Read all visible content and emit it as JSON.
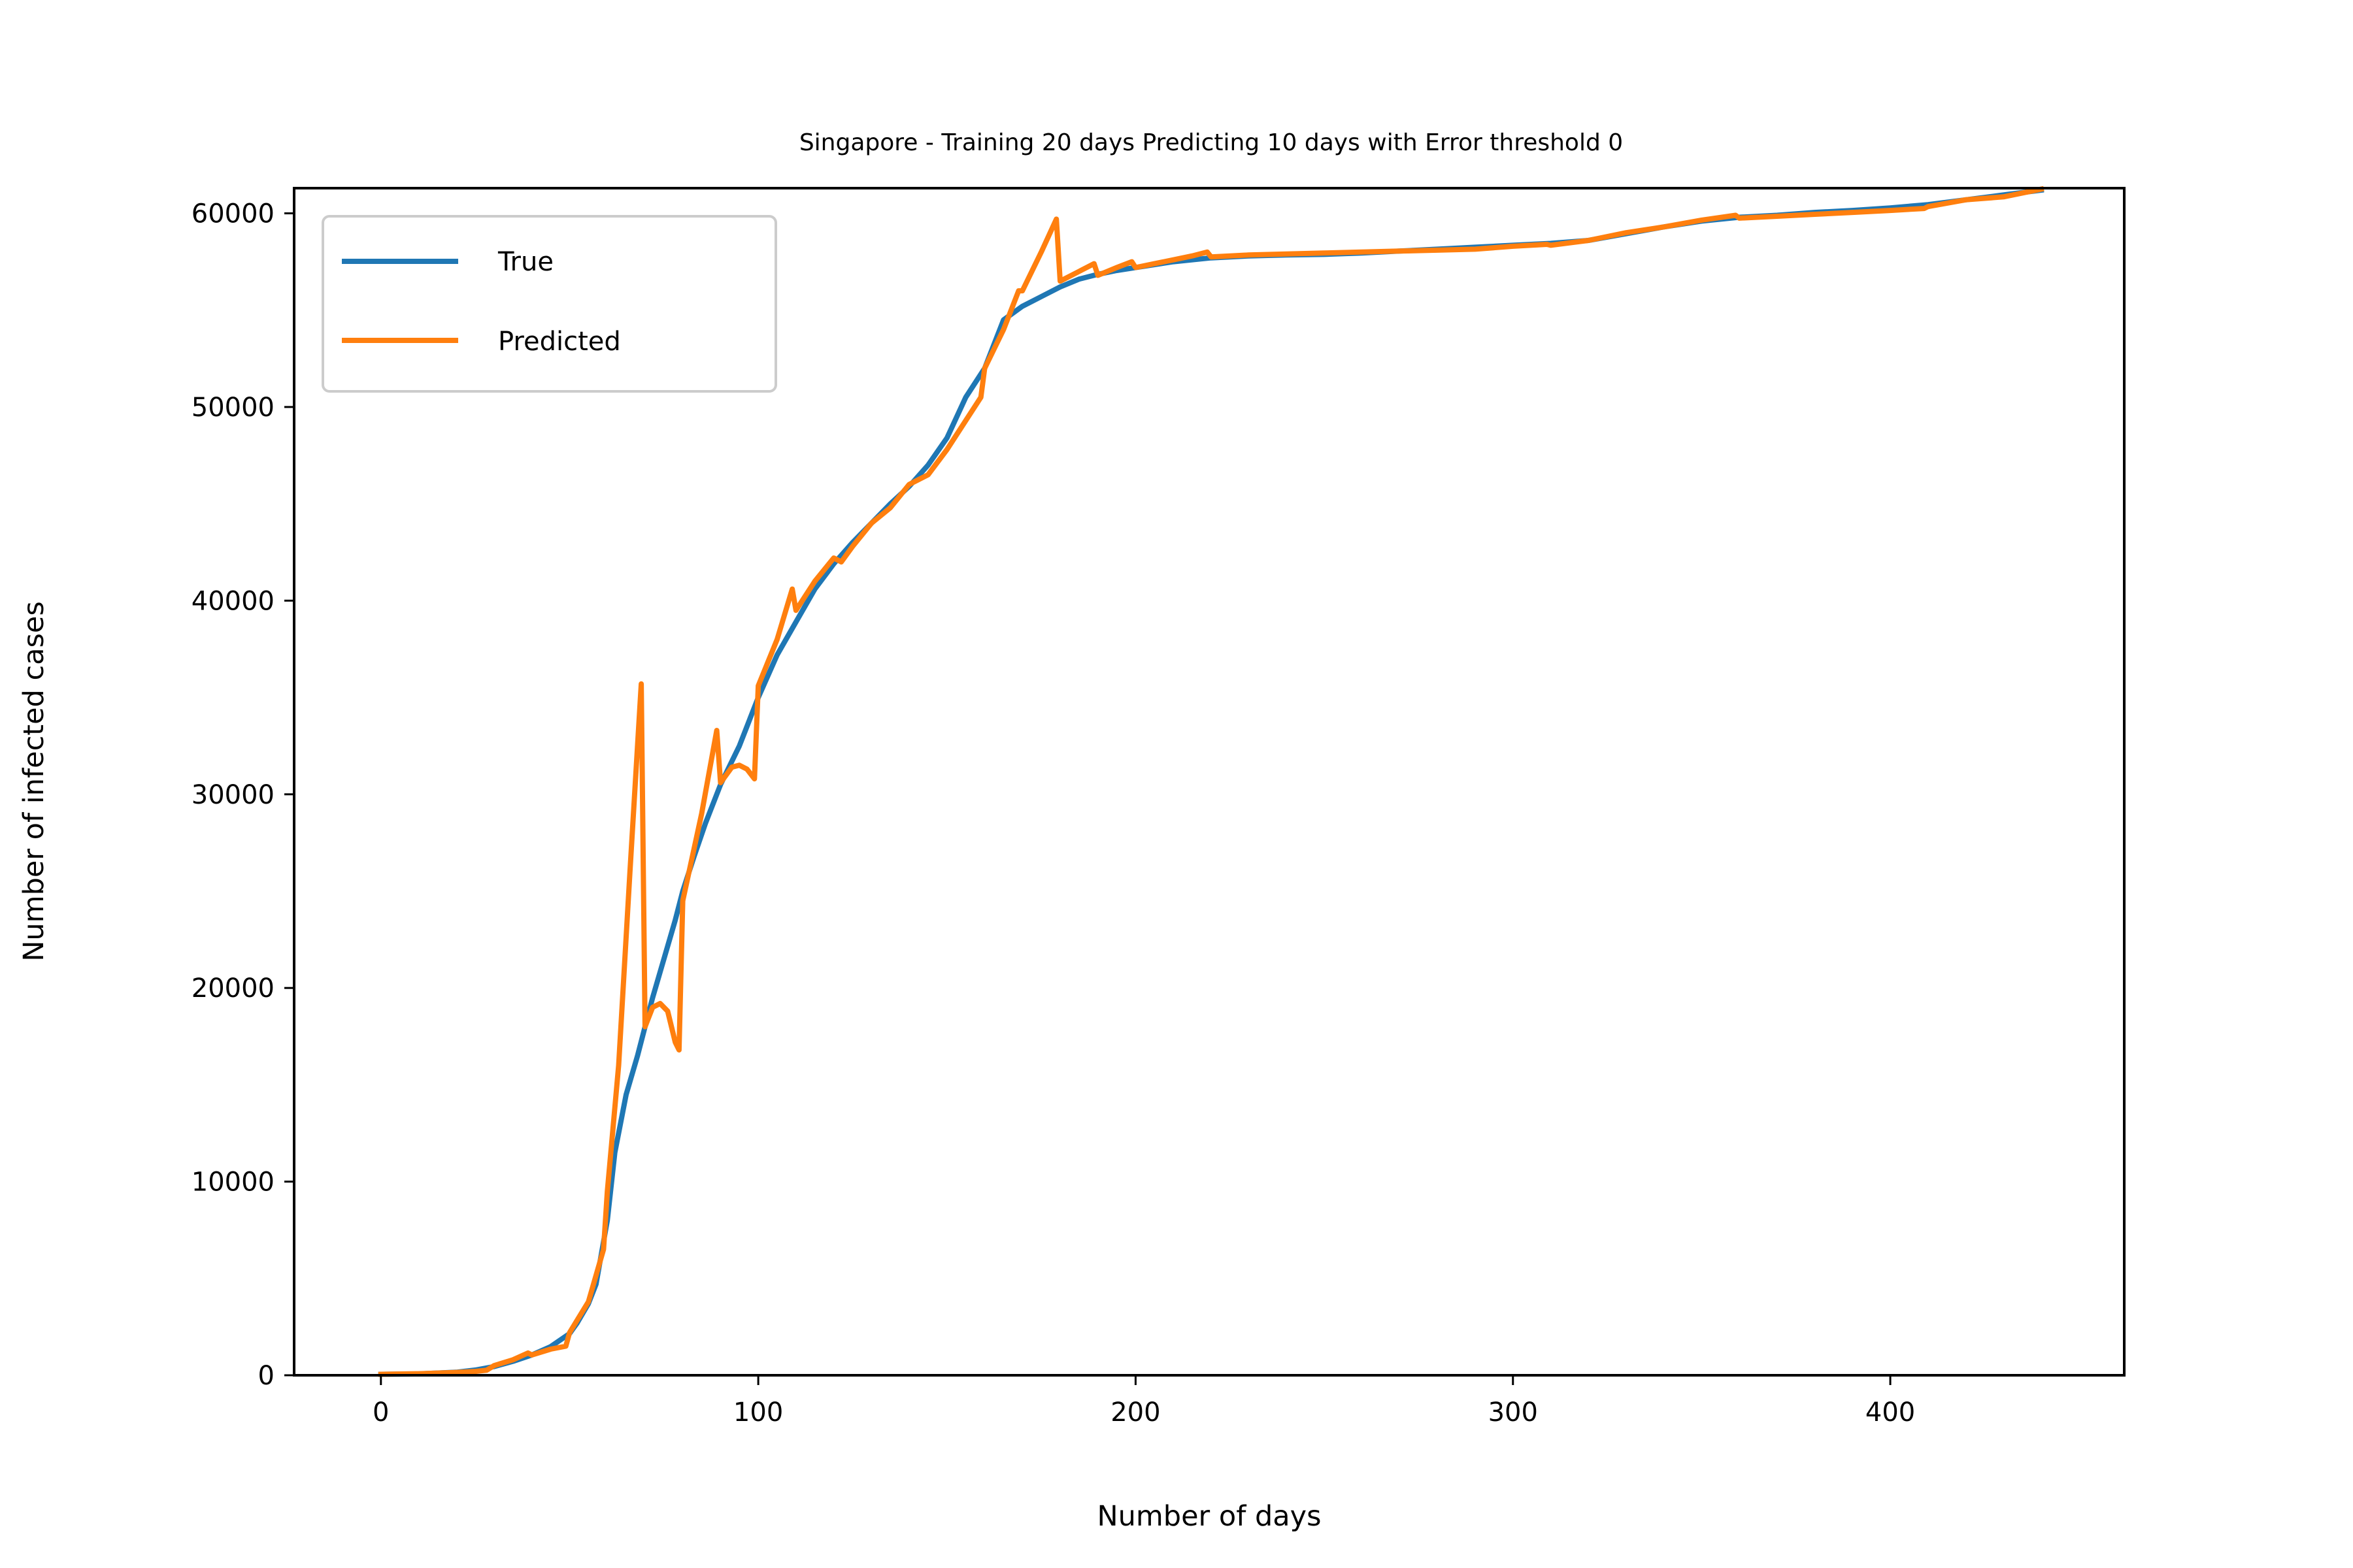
{
  "chart_data": {
    "type": "line",
    "title": "Singapore - Training 20 days Predicting 10 days with Error threshold 0",
    "xlabel": "Number of days",
    "ylabel": "Number of infected cases",
    "xlim": [
      -23,
      462
    ],
    "ylim": [
      0,
      61300
    ],
    "xticks": [
      0,
      100,
      200,
      300,
      400
    ],
    "yticks": [
      0,
      10000,
      20000,
      30000,
      40000,
      50000,
      60000
    ],
    "grid": false,
    "legend": {
      "position": "top-left",
      "entries": [
        "True",
        "Predicted"
      ]
    },
    "series": [
      {
        "name": "True",
        "color": "#1f77b4",
        "x": [
          0,
          10,
          20,
          25,
          30,
          35,
          40,
          45,
          50,
          52,
          55,
          57,
          60,
          62,
          65,
          68,
          70,
          72,
          75,
          78,
          80,
          83,
          86,
          90,
          95,
          100,
          105,
          110,
          115,
          120,
          125,
          130,
          135,
          140,
          145,
          150,
          155,
          160,
          165,
          170,
          175,
          180,
          185,
          190,
          195,
          200,
          210,
          220,
          230,
          240,
          250,
          260,
          270,
          280,
          290,
          300,
          310,
          320,
          330,
          340,
          350,
          360,
          370,
          380,
          390,
          400,
          410,
          420,
          430,
          440
        ],
        "values": [
          50,
          70,
          160,
          270,
          450,
          720,
          1050,
          1480,
          2150,
          2700,
          3700,
          4700,
          8000,
          11500,
          14500,
          16500,
          18000,
          19500,
          21500,
          23500,
          25000,
          26800,
          28500,
          30500,
          32500,
          35000,
          37200,
          38900,
          40600,
          41900,
          43000,
          44000,
          45000,
          45900,
          47000,
          48400,
          50500,
          52000,
          54500,
          55200,
          55700,
          56200,
          56600,
          56850,
          57050,
          57200,
          57500,
          57700,
          57800,
          57850,
          57880,
          57950,
          58050,
          58150,
          58250,
          58350,
          58450,
          58600,
          58950,
          59300,
          59600,
          59800,
          59900,
          60050,
          60150,
          60280,
          60450,
          60700,
          60950,
          61200
        ]
      },
      {
        "name": "Predicted",
        "color": "#ff7f0e",
        "x": [
          0,
          10,
          20,
          25,
          28,
          30,
          35,
          39,
          40,
          45,
          49,
          50,
          55,
          59,
          60,
          63,
          66,
          69,
          70,
          72,
          74,
          76,
          78,
          79,
          80,
          85,
          89,
          90,
          93,
          95,
          97,
          99,
          100,
          105,
          109,
          110,
          115,
          120,
          122,
          125,
          130,
          135,
          140,
          145,
          150,
          155,
          159,
          160,
          165,
          169,
          170,
          175,
          179,
          180,
          185,
          189,
          190,
          195,
          199,
          200,
          205,
          210,
          215,
          219,
          220,
          230,
          240,
          250,
          260,
          270,
          280,
          290,
          300,
          309,
          310,
          320,
          330,
          340,
          350,
          359,
          360,
          370,
          380,
          390,
          400,
          409,
          410,
          420,
          430,
          440
        ],
        "values": [
          50,
          80,
          150,
          200,
          260,
          500,
          800,
          1150,
          1050,
          1350,
          1500,
          2200,
          3800,
          6500,
          9500,
          16000,
          26000,
          35700,
          18000,
          19000,
          19200,
          18800,
          17200,
          16800,
          24500,
          29000,
          33300,
          30600,
          31400,
          31500,
          31300,
          30800,
          35600,
          38000,
          40600,
          39500,
          41000,
          42200,
          42000,
          42800,
          44000,
          44800,
          46000,
          46500,
          47800,
          49300,
          50500,
          52000,
          54000,
          56000,
          56000,
          58000,
          59700,
          56500,
          57000,
          57400,
          56800,
          57200,
          57500,
          57200,
          57400,
          57600,
          57800,
          58000,
          57750,
          57850,
          57900,
          57950,
          58000,
          58050,
          58100,
          58150,
          58300,
          58400,
          58350,
          58600,
          59000,
          59300,
          59650,
          59900,
          59750,
          59850,
          59950,
          60050,
          60150,
          60250,
          60350,
          60700,
          60850,
          61250
        ]
      }
    ]
  }
}
